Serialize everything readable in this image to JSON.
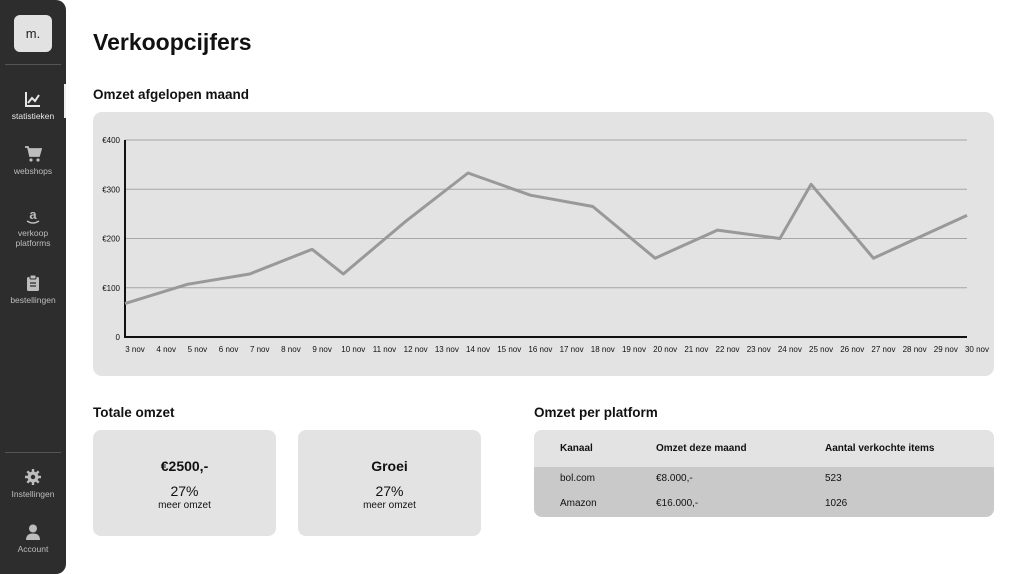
{
  "app": {
    "logo_text": "m."
  },
  "sidebar": {
    "items": [
      {
        "label": "statistieken",
        "icon": "chart-icon",
        "active": true
      },
      {
        "label": "webshops",
        "icon": "cart-icon",
        "active": false
      },
      {
        "label": "verkoop platforms",
        "icon": "amazon-icon",
        "active": false
      },
      {
        "label": "bestellingen",
        "icon": "clipboard-icon",
        "active": false
      }
    ],
    "bottom_items": [
      {
        "label": "Instellingen",
        "icon": "gear-icon"
      },
      {
        "label": "Account",
        "icon": "user-icon"
      }
    ]
  },
  "page": {
    "title": "Verkoopcijfers"
  },
  "revenue_chart": {
    "section_title": "Omzet afgelopen maand"
  },
  "chart_data": {
    "type": "line",
    "title": "Omzet afgelopen maand",
    "xlabel": "",
    "ylabel": "",
    "x": [
      "3 nov",
      "4 nov",
      "5 nov",
      "6 nov",
      "7 nov",
      "8 nov",
      "9 nov",
      "10 nov",
      "11 nov",
      "12 nov",
      "13 nov",
      "14 nov",
      "15 nov",
      "16 nov",
      "17 nov",
      "18 nov",
      "19 nov",
      "20 nov",
      "21 nov",
      "22 nov",
      "23 nov",
      "24 nov",
      "25 nov",
      "26 nov",
      "27 nov",
      "28 nov",
      "29 nov",
      "30 nov"
    ],
    "series": [
      {
        "values": [
          68,
          107,
          128,
          178,
          128,
          235,
          333,
          288,
          265,
          160,
          217,
          200,
          310,
          160,
          247
        ],
        "x": [
          "3 nov",
          "5 nov",
          "7 nov",
          "9 nov",
          "10 nov",
          "12 nov",
          "14 nov",
          "16 nov",
          "18 nov",
          "20 nov",
          "22 nov",
          "24 nov",
          "25 nov",
          "27 nov",
          "30 nov"
        ]
      }
    ],
    "y_ticks": [
      "0",
      "€100",
      "€200",
      "€300",
      "€400"
    ],
    "ylim": [
      0,
      400
    ],
    "grid": true,
    "line_color": "#999999"
  },
  "totals": {
    "section_title": "Totale omzet",
    "cards": [
      {
        "title": "€2500,-",
        "pct": "27%",
        "sub": "meer omzet"
      },
      {
        "title": "Groei",
        "pct": "27%",
        "sub": "meer omzet"
      }
    ]
  },
  "platforms": {
    "section_title": "Omzet per platform",
    "headers": [
      "Kanaal",
      "Omzet deze maand",
      "Aantal verkochte items"
    ],
    "rows": [
      [
        "bol.com",
        "€8.000,-",
        "523"
      ],
      [
        "Amazon",
        "€16.000,-",
        "1026"
      ]
    ]
  }
}
